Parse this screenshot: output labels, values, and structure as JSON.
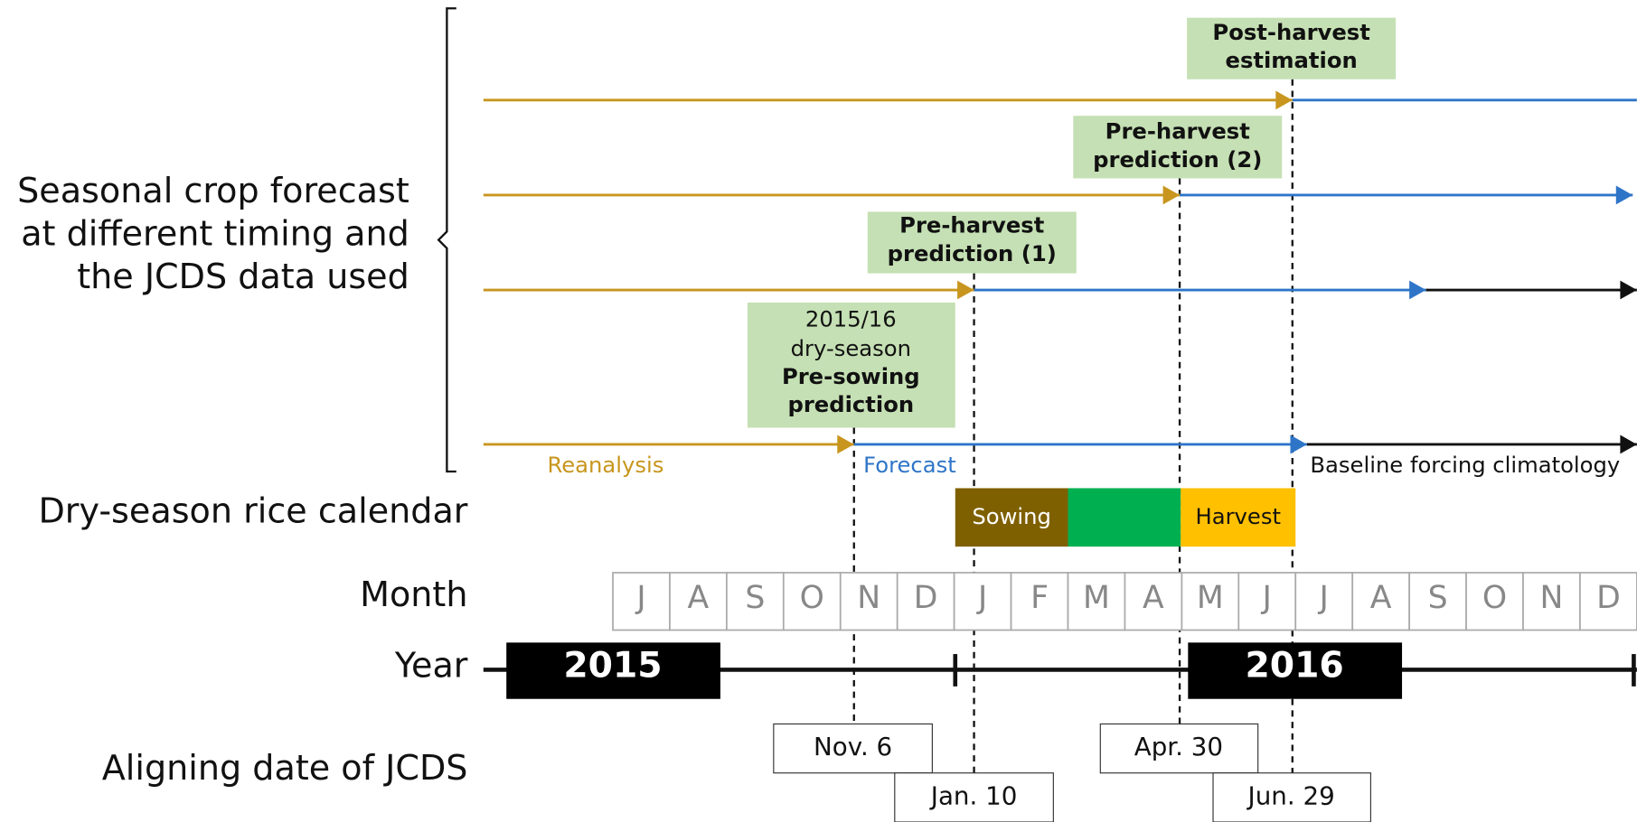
{
  "labels": {
    "forecast": [
      "Seasonal crop forecast",
      "at different timing and",
      "the JCDS data used"
    ],
    "calendar": "Dry-season rice calendar",
    "month": "Month",
    "year": "Year",
    "date": "Aligning date of JCDS"
  },
  "stages": {
    "pre_sowing": {
      "subtitle": [
        "2015/16",
        "dry-season"
      ],
      "title": [
        "Pre-sowing",
        "prediction"
      ]
    },
    "pre_harvest_1": [
      "Pre-harvest",
      "prediction (1)"
    ],
    "pre_harvest_2": [
      "Pre-harvest",
      "prediction (2)"
    ],
    "post_harvest": [
      "Post-harvest",
      "estimation"
    ]
  },
  "legend": {
    "reanalysis": "Reanalysis",
    "forecast": "Forecast",
    "baseline": "Baseline forcing climatology"
  },
  "calendar": {
    "sowing": "Sowing",
    "harvest": "Harvest"
  },
  "months": [
    "J",
    "A",
    "S",
    "O",
    "N",
    "D",
    "J",
    "F",
    "M",
    "A",
    "M",
    "J",
    "J",
    "A",
    "S",
    "O",
    "N",
    "D"
  ],
  "years": [
    "2015",
    "2016"
  ],
  "dates": [
    "Nov. 6",
    "Jan. 10",
    "Apr. 30",
    "Jun. 29"
  ]
}
